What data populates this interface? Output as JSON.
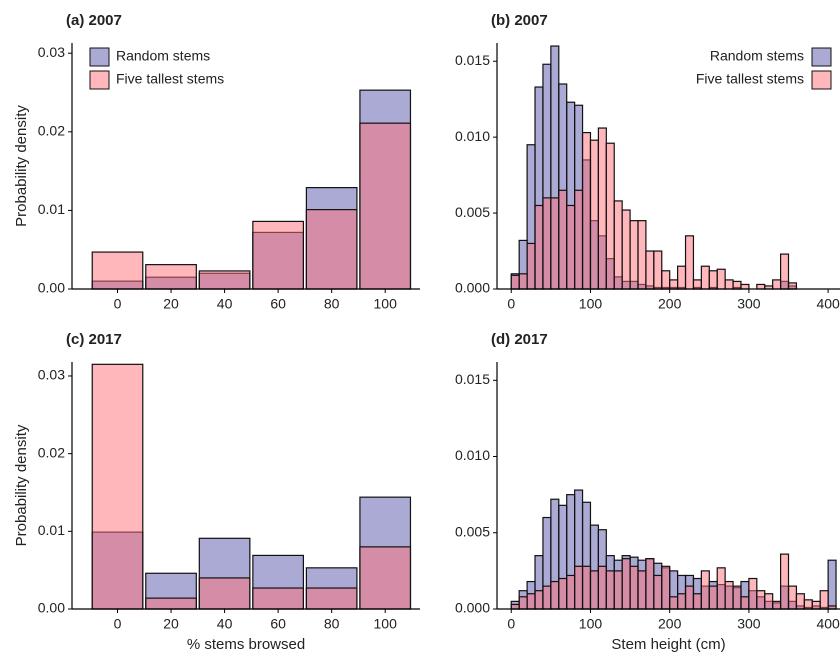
{
  "chart_data": [
    {
      "type": "histogram",
      "title": "(a) 2007",
      "ylabel": "Probability density",
      "bins": [
        -10,
        10,
        30,
        50,
        70,
        90,
        110
      ],
      "series": [
        {
          "name": "Random stems",
          "color": "#5555aa",
          "values": [
            0.001,
            0.0015,
            0.002,
            0.0072,
            0.0129,
            0.0253
          ]
        },
        {
          "name": "Five tallest stems",
          "color": "#ff6f7a",
          "values": [
            0.0047,
            0.0031,
            0.0023,
            0.0086,
            0.0101,
            0.0211
          ]
        }
      ],
      "xlim": [
        -17,
        113
      ],
      "xticks": [
        0,
        20,
        40,
        60,
        80,
        100
      ],
      "ylim": [
        0,
        0.0313
      ],
      "yticks": [
        {
          "value": 0,
          "label": "0.00"
        },
        {
          "value": 0.01,
          "label": "0.01"
        },
        {
          "value": 0.02,
          "label": "0.02"
        },
        {
          "value": 0.03,
          "label": "0.03"
        }
      ],
      "legend": "upper left"
    },
    {
      "type": "histogram",
      "title": "(b) 2007",
      "bins": [
        0,
        10,
        20,
        30,
        40,
        50,
        60,
        70,
        80,
        90,
        100,
        110,
        120,
        130,
        140,
        150,
        160,
        170,
        180,
        190,
        200,
        210,
        220,
        230,
        240,
        250,
        260,
        270,
        280,
        290,
        300,
        310,
        320,
        330,
        340,
        350,
        360,
        370,
        380,
        390,
        400,
        410
      ],
      "series": [
        {
          "name": "Random stems",
          "color": "#5555aa",
          "values": [
            0.001,
            0.0032,
            0.0095,
            0.0133,
            0.0148,
            0.016,
            0.0135,
            0.0123,
            0.0121,
            0.0085,
            0.0045,
            0.0035,
            0.002,
            0.0008,
            0.0005,
            0.0005,
            0.0003,
            0.0002,
            0.0001,
            0.0001,
            0.0001,
            0.0001,
            0,
            0.0001,
            0,
            0.0001,
            0,
            0,
            0.0001,
            0,
            0,
            0,
            0,
            0,
            0.0005,
            0.0002,
            0,
            0,
            0,
            0,
            0
          ]
        },
        {
          "name": "Five tallest stems",
          "color": "#ff6f7a",
          "values": [
            0.0009,
            0.001,
            0.003,
            0.0055,
            0.006,
            0.006,
            0.0065,
            0.0055,
            0.0065,
            0.0103,
            0.0098,
            0.0106,
            0.0096,
            0.0058,
            0.0052,
            0.0045,
            0.0045,
            0.0025,
            0.0025,
            0.0012,
            0.0006,
            0.0015,
            0.0035,
            0.0006,
            0.0015,
            0.0012,
            0.0013,
            0.0006,
            0.0005,
            0.0003,
            0,
            0.0003,
            0.0002,
            0.0006,
            0.0023,
            0.0004,
            0,
            0,
            0,
            0,
            0
          ]
        }
      ],
      "xlim": [
        -18,
        415
      ],
      "xticks": [
        0,
        100,
        200,
        300,
        400
      ],
      "ylim": [
        0,
        0.0162
      ],
      "yticks": [
        {
          "value": 0,
          "label": "0.000"
        },
        {
          "value": 0.005,
          "label": "0.005"
        },
        {
          "value": 0.01,
          "label": "0.010"
        },
        {
          "value": 0.015,
          "label": "0.015"
        }
      ],
      "legend": "upper right"
    },
    {
      "type": "histogram",
      "title": "(c) 2017",
      "ylabel": "Probability density",
      "xlabel": "% stems browsed",
      "bins": [
        -10,
        10,
        30,
        50,
        70,
        90,
        110
      ],
      "series": [
        {
          "color": "#5555aa",
          "values": [
            0.0099,
            0.0046,
            0.0091,
            0.0069,
            0.0053,
            0.0144
          ]
        },
        {
          "color": "#ff6f7a",
          "values": [
            0.0315,
            0.0014,
            0.004,
            0.0027,
            0.0027,
            0.008
          ]
        }
      ],
      "xlim": [
        -17,
        113
      ],
      "xticks": [
        0,
        20,
        40,
        60,
        80,
        100
      ],
      "ylim": [
        0,
        0.0318
      ],
      "yticks": [
        {
          "value": 0,
          "label": "0.00"
        },
        {
          "value": 0.01,
          "label": "0.01"
        },
        {
          "value": 0.02,
          "label": "0.02"
        },
        {
          "value": 0.03,
          "label": "0.03"
        }
      ]
    },
    {
      "type": "histogram",
      "title": "(d) 2017",
      "xlabel": "Stem height (cm)",
      "bins": [
        0,
        10,
        20,
        30,
        40,
        50,
        60,
        70,
        80,
        90,
        100,
        110,
        120,
        130,
        140,
        150,
        160,
        170,
        180,
        190,
        200,
        210,
        220,
        230,
        240,
        250,
        260,
        270,
        280,
        290,
        300,
        310,
        320,
        330,
        340,
        350,
        360,
        370,
        380,
        390,
        400,
        410
      ],
      "series": [
        {
          "color": "#5555aa",
          "values": [
            0.0005,
            0.0012,
            0.0018,
            0.0035,
            0.006,
            0.0072,
            0.0068,
            0.0075,
            0.0078,
            0.007,
            0.0055,
            0.0052,
            0.0035,
            0.0032,
            0.0035,
            0.0034,
            0.0032,
            0.0033,
            0.003,
            0.0027,
            0.0025,
            0.0022,
            0.0022,
            0.002,
            0.0015,
            0.0018,
            0.0016,
            0.0015,
            0.0014,
            0.0018,
            0.0012,
            0.0008,
            0.0005,
            0.0004,
            0.0015,
            0.0005,
            0.0002,
            0.0001,
            0.0002,
            0.0001,
            0.0032
          ]
        },
        {
          "color": "#ff6f7a",
          "values": [
            0.0003,
            0.0008,
            0.001,
            0.0012,
            0.0015,
            0.0018,
            0.002,
            0.0022,
            0.0028,
            0.0028,
            0.0025,
            0.0028,
            0.0025,
            0.0025,
            0.0033,
            0.0028,
            0.0025,
            0.0033,
            0.0022,
            0.0028,
            0.0008,
            0.001,
            0.0015,
            0.001,
            0.0025,
            0.0015,
            0.0027,
            0.0018,
            0.0015,
            0.0008,
            0.002,
            0.0012,
            0.001,
            0.0005,
            0.0036,
            0.0015,
            0.001,
            0.0006,
            0.0005,
            0.0012,
            0.0002
          ]
        }
      ],
      "xlim": [
        -18,
        415
      ],
      "xticks": [
        0,
        100,
        200,
        300,
        400
      ],
      "ylim": [
        0,
        0.0162
      ],
      "yticks": [
        {
          "value": 0,
          "label": "0.000"
        },
        {
          "value": 0.005,
          "label": "0.005"
        },
        {
          "value": 0.01,
          "label": "0.010"
        },
        {
          "value": 0.015,
          "label": "0.015"
        }
      ]
    }
  ]
}
